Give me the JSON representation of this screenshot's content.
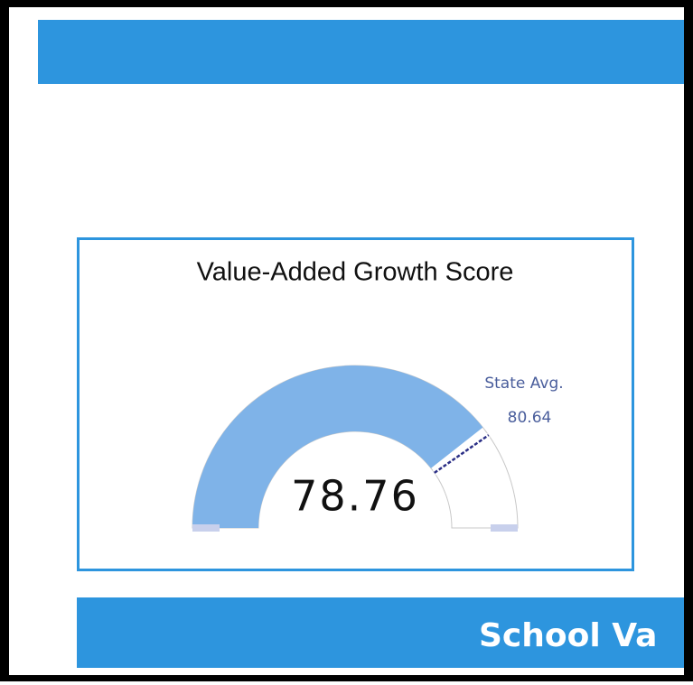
{
  "chart_data": {
    "type": "gauge",
    "title": "Value-Added Growth Score",
    "value": 78.76,
    "range": [
      0,
      100
    ],
    "color": "#7fb3e8",
    "reference": {
      "label": "State Avg.",
      "value": 80.64,
      "color": "#2b2f86"
    }
  },
  "banner": "School Va"
}
